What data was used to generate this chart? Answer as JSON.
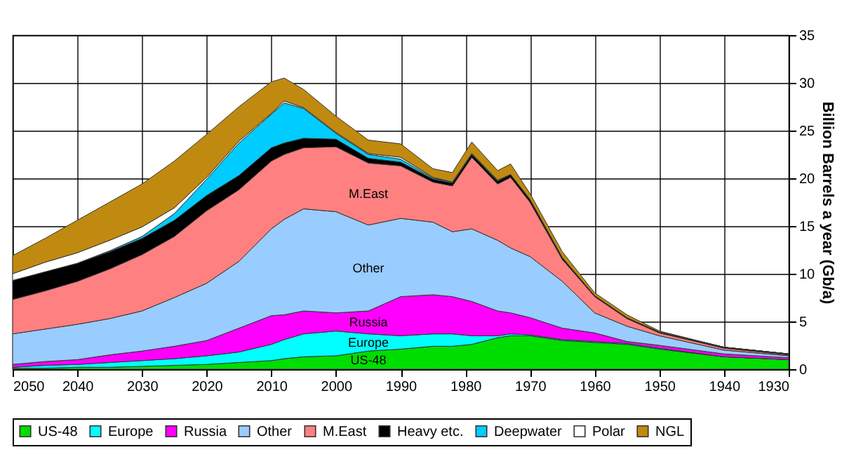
{
  "chart_data": {
    "type": "area",
    "stacked": true,
    "ylabel": "Billion Barrels a year (Gb/a)",
    "x": [
      1930,
      1940,
      1950,
      1955,
      1960,
      1965,
      1970,
      1973,
      1975,
      1979,
      1982,
      1985,
      1990,
      1995,
      2000,
      2005,
      2008,
      2010,
      2015,
      2020,
      2025,
      2030,
      2035,
      2040,
      2045,
      2050
    ],
    "series": [
      {
        "name": "US-48",
        "color": "#00dd00",
        "values": [
          1.0,
          1.3,
          2.1,
          2.6,
          2.8,
          3.0,
          3.5,
          3.5,
          3.3,
          2.6,
          2.4,
          2.4,
          2.1,
          1.9,
          1.4,
          1.3,
          1.1,
          0.9,
          0.7,
          0.5,
          0.4,
          0.3,
          0.2,
          0.2,
          0.1,
          0.1
        ]
      },
      {
        "name": "Europe",
        "color": "#00ffff",
        "values": [
          0,
          0,
          0.1,
          0.1,
          0.1,
          0.1,
          0.1,
          0.2,
          0.2,
          0.9,
          1.3,
          1.3,
          1.4,
          1.8,
          2.6,
          2.4,
          2.0,
          1.7,
          1.1,
          0.9,
          0.7,
          0.6,
          0.5,
          0.3,
          0.3,
          0.1
        ]
      },
      {
        "name": "Russia",
        "color": "#ff00ff",
        "values": [
          0.2,
          0.3,
          0.3,
          0.2,
          0.9,
          1.2,
          1.8,
          2.2,
          2.6,
          3.6,
          3.9,
          4.1,
          4.1,
          2.4,
          1.9,
          2.4,
          2.6,
          3.0,
          2.5,
          1.6,
          1.3,
          1.0,
          0.8,
          0.5,
          0.4,
          0.3
        ]
      },
      {
        "name": "Other",
        "color": "#99ccff",
        "values": [
          0.2,
          0.4,
          1.0,
          1.6,
          2.1,
          4.9,
          6.4,
          6.8,
          7.4,
          7.6,
          6.8,
          7.6,
          8.2,
          9.0,
          10.6,
          10.7,
          10.0,
          9.1,
          7.0,
          6.0,
          5.1,
          4.2,
          3.8,
          3.7,
          3.4,
          3.2
        ]
      },
      {
        "name": "M.East",
        "color": "#ff8080",
        "values": [
          0.1,
          0.2,
          0.3,
          0.8,
          1.7,
          2.3,
          5.7,
          7.4,
          5.9,
          7.5,
          4.8,
          4.2,
          5.5,
          6.5,
          6.8,
          6.4,
          6.8,
          7.1,
          7.5,
          7.6,
          6.4,
          5.9,
          5.2,
          4.5,
          4.0,
          3.6
        ]
      },
      {
        "name": "Heavy etc.",
        "color": "#000000",
        "values": [
          0.1,
          0.1,
          0.1,
          0.1,
          0.1,
          0.2,
          0.3,
          0.3,
          0.3,
          0.3,
          0.3,
          0.3,
          0.4,
          0.5,
          0.8,
          1.0,
          1.2,
          1.4,
          1.5,
          1.6,
          1.7,
          1.7,
          1.8,
          1.9,
          2.0,
          2.0
        ]
      },
      {
        "name": "Deepwater",
        "color": "#00ccff",
        "values": [
          0,
          0,
          0,
          0,
          0,
          0,
          0,
          0,
          0.1,
          0.1,
          0.1,
          0.1,
          0.3,
          0.4,
          0.6,
          3.1,
          4.2,
          3.5,
          3.4,
          1.7,
          0.7,
          0.2,
          0.1,
          0,
          0,
          0
        ]
      },
      {
        "name": "Polar",
        "color": "#ffffff",
        "values": [
          0,
          0,
          0,
          0,
          0,
          0,
          0,
          0,
          0,
          0,
          0,
          0.1,
          0.2,
          0.1,
          0.1,
          0.1,
          0.2,
          0.1,
          0.2,
          0.2,
          0.6,
          1.0,
          1.1,
          1.1,
          1.0,
          0.7
        ]
      },
      {
        "name": "NGL",
        "color": "#c08a10",
        "values": [
          0,
          0,
          0.1,
          0.3,
          0.3,
          0.6,
          0.6,
          1.1,
          1.0,
          1.2,
          1.0,
          0.9,
          1.4,
          1.4,
          1.7,
          1.9,
          2.4,
          3.3,
          3.6,
          4.5,
          4.9,
          4.5,
          4.0,
          3.4,
          2.5,
          1.9
        ]
      }
    ],
    "annotations": [
      "US-48",
      "Europe",
      "Russia",
      "Other",
      "M.East"
    ],
    "xlim": [
      2050,
      1930
    ],
    "xticks": [
      2050,
      2040,
      2030,
      2020,
      2010,
      2000,
      1990,
      1980,
      1970,
      1960,
      1950,
      1940,
      1930
    ],
    "ylim": [
      0,
      35
    ],
    "yticks": [
      0,
      5,
      10,
      15,
      20,
      25,
      30,
      35
    ],
    "grid": true,
    "legend": "bottom"
  }
}
